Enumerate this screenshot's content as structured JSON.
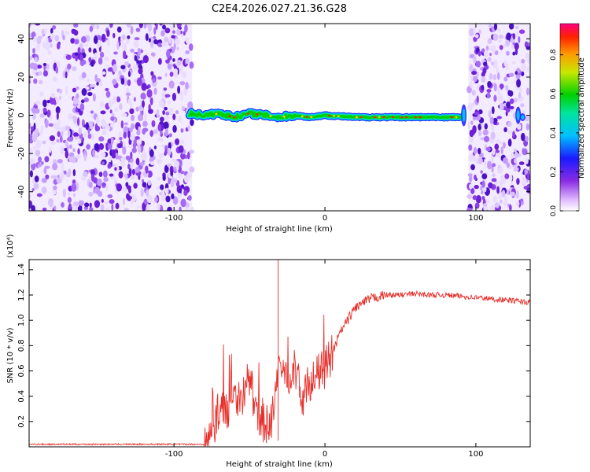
{
  "title": "C2E4.2026.027.21.36.G28",
  "chart_data": [
    {
      "type": "heatmap",
      "xlabel": "Height of straight line (km)",
      "ylabel": "Frequency (Hz)",
      "xlim": [
        -196,
        136
      ],
      "ylim": [
        -50,
        48
      ],
      "x_ticks": [
        -100,
        0,
        100
      ],
      "y_ticks": [
        -40,
        -20,
        0,
        20,
        40
      ],
      "colorbar": {
        "label": "Normalized spectral amplitude",
        "range": [
          0.0,
          0.96
        ],
        "ticks": [
          "0.0",
          "0.2",
          "0.4",
          "0.6",
          "0.8"
        ]
      },
      "noise_regions_km": [
        [
          -196,
          -88
        ],
        [
          95,
          136
        ]
      ],
      "signal_track": {
        "x": [
          -90,
          -80,
          -70,
          -60,
          -50,
          -40,
          -30,
          -20,
          -10,
          0,
          20,
          40,
          60,
          80,
          90
        ],
        "frequency_hz": [
          1,
          0,
          1,
          -1,
          1,
          0,
          -1,
          0,
          -1,
          0,
          -1,
          -1,
          -1,
          -1,
          -1
        ]
      }
    },
    {
      "type": "line",
      "xlabel": "Height of straight line (km)",
      "ylabel": "SNR (10 * v/v)",
      "y_multiplier": "(x10⁴)",
      "xlim": [
        -196,
        136
      ],
      "ylim": [
        0,
        1.48
      ],
      "x_ticks": [
        -100,
        0,
        100
      ],
      "y_ticks": [
        0.2,
        0.4,
        0.6,
        0.8,
        1.0,
        1.2,
        1.4
      ],
      "series": [
        {
          "color": "#e8302b",
          "x": [
            -196,
            -180,
            -160,
            -140,
            -120,
            -100,
            -90,
            -80,
            -75,
            -70,
            -65,
            -60,
            -55,
            -50,
            -45,
            -40,
            -35,
            -30,
            -25,
            -20,
            -15,
            -10,
            -5,
            0,
            5,
            10,
            20,
            30,
            40,
            50,
            60,
            70,
            80,
            90,
            100,
            110,
            120,
            130,
            136
          ],
          "values": [
            0.02,
            0.02,
            0.02,
            0.02,
            0.02,
            0.02,
            0.02,
            0.02,
            0.08,
            0.32,
            0.28,
            0.42,
            0.38,
            0.56,
            0.22,
            0.18,
            0.22,
            0.62,
            0.56,
            0.62,
            0.38,
            0.52,
            0.57,
            0.62,
            0.74,
            0.9,
            1.1,
            1.17,
            1.2,
            1.2,
            1.21,
            1.2,
            1.2,
            1.19,
            1.18,
            1.17,
            1.16,
            1.15,
            1.14
          ]
        }
      ]
    }
  ]
}
